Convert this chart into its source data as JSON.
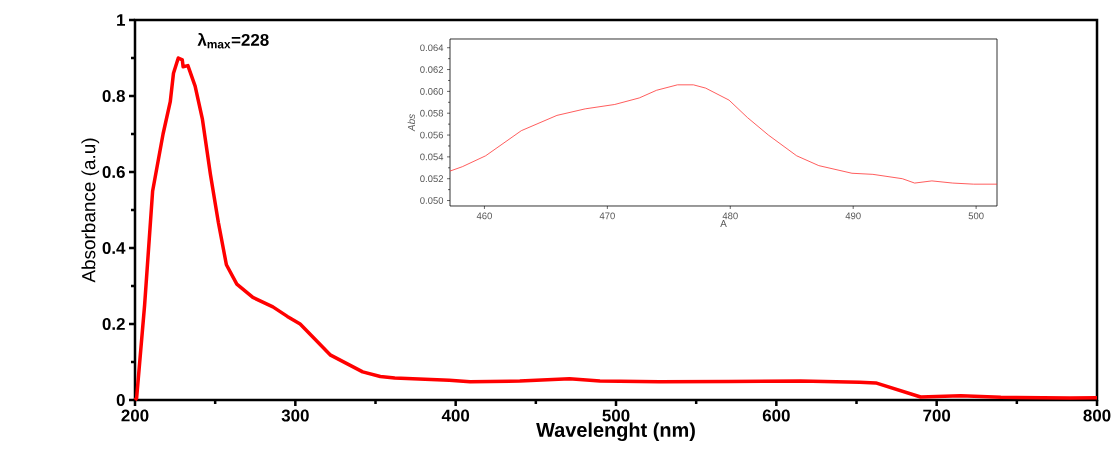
{
  "chart_data": [
    {
      "type": "line",
      "xlabel": "Wavelenght (nm)",
      "ylabel": "Absorbance (a.u)",
      "x": [
        200,
        201,
        206,
        211,
        217.5,
        222,
        224,
        227,
        229.5,
        230,
        233,
        237.5,
        242,
        247,
        252,
        257,
        263.5,
        273.5,
        286,
        295,
        303,
        310,
        322,
        342,
        353,
        362,
        396,
        409,
        440,
        471,
        490,
        527,
        570,
        615,
        652,
        662,
        690,
        715,
        740,
        783,
        800
      ],
      "values": [
        0,
        0.005,
        0.25,
        0.55,
        0.7,
        0.785,
        0.86,
        0.9,
        0.895,
        0.877,
        0.88,
        0.826,
        0.74,
        0.595,
        0.467,
        0.356,
        0.305,
        0.27,
        0.245,
        0.22,
        0.2,
        0.17,
        0.118,
        0.074,
        0.062,
        0.058,
        0.052,
        0.048,
        0.05,
        0.056,
        0.05,
        0.048,
        0.049,
        0.05,
        0.047,
        0.045,
        0.008,
        0.011,
        0.007,
        0.005,
        0.006
      ],
      "color": "#ff0000",
      "xlim": [
        200,
        800
      ],
      "ylim": [
        0,
        1
      ],
      "xticks": [
        200,
        300,
        400,
        500,
        600,
        700,
        800
      ],
      "yticks": [
        0,
        0.2,
        0.4,
        0.6,
        0.8,
        1
      ],
      "annotations": [
        {
          "text": "λ$_{max}$=228",
          "x": 228,
          "y": 0.9
        }
      ]
    },
    {
      "type": "line",
      "xlabel": "A",
      "ylabel": "Abs",
      "x": [
        457.2,
        458.2,
        460.1,
        463,
        465.9,
        468.2,
        470.6,
        472.6,
        474,
        475.7,
        477,
        478,
        479.9,
        481.4,
        483.1,
        485.4,
        487.2,
        489.9,
        491.6,
        494,
        495,
        496.4,
        498.1,
        499.8,
        501.7
      ],
      "values": [
        0.0527,
        0.0531,
        0.0541,
        0.0564,
        0.0578,
        0.0584,
        0.0588,
        0.0594,
        0.0601,
        0.0606,
        0.0606,
        0.0603,
        0.0592,
        0.0576,
        0.056,
        0.0541,
        0.0532,
        0.0525,
        0.0524,
        0.052,
        0.0516,
        0.0518,
        0.0516,
        0.0515,
        0.0515
      ],
      "color": "#ff3333",
      "xlim": [
        457.2,
        501.7
      ],
      "ylim": [
        0.0495,
        0.0648
      ],
      "xticks": [
        460,
        470,
        480,
        490,
        500
      ],
      "yticks": [
        {
          "value": 0.05,
          "label": "0.050"
        },
        {
          "value": 0.052,
          "label": "0.052"
        },
        {
          "value": 0.054,
          "label": "0.054"
        },
        {
          "value": 0.056,
          "label": "0.056"
        },
        {
          "value": 0.058,
          "label": "0.058"
        },
        {
          "value": 0.06,
          "label": "0.060"
        },
        {
          "value": 0.062,
          "label": "0.062"
        },
        {
          "value": 0.064,
          "label": "0.064"
        }
      ]
    }
  ]
}
